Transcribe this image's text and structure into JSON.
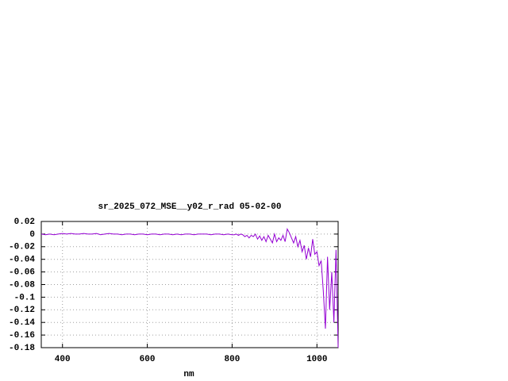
{
  "chart_data": {
    "type": "line",
    "title": "sr_2025_072_MSE__y02_r_rad 05-02-00",
    "x_label": "nm",
    "x": [
      350,
      360,
      370,
      380,
      390,
      400,
      410,
      420,
      430,
      440,
      450,
      460,
      470,
      480,
      490,
      500,
      510,
      520,
      530,
      540,
      550,
      560,
      570,
      580,
      590,
      600,
      610,
      620,
      630,
      640,
      650,
      660,
      670,
      680,
      690,
      700,
      710,
      720,
      730,
      740,
      750,
      760,
      770,
      780,
      790,
      800,
      805,
      810,
      815,
      820,
      825,
      830,
      835,
      840,
      845,
      850,
      855,
      860,
      865,
      870,
      875,
      880,
      885,
      890,
      895,
      900,
      905,
      910,
      915,
      920,
      925,
      930,
      935,
      940,
      945,
      950,
      955,
      960,
      965,
      970,
      975,
      980,
      985,
      990,
      995,
      1000,
      1005,
      1010,
      1015,
      1020,
      1025,
      1030,
      1035,
      1040,
      1045,
      1050
    ],
    "series": [
      {
        "color": "#9400d3",
        "values": [
          0,
          -0.001,
          0,
          -0.001,
          0,
          0.001,
          0,
          0.001,
          0,
          0,
          0.001,
          0,
          0,
          0.001,
          -0.001,
          0,
          0.001,
          0,
          0,
          -0.001,
          0,
          0,
          -0.001,
          0,
          0,
          -0.001,
          0,
          0,
          -0.001,
          0,
          0,
          -0.001,
          0,
          -0.001,
          0,
          0,
          -0.001,
          0,
          0,
          0,
          -0.001,
          0,
          0,
          -0.001,
          0,
          -0.001,
          -0.001,
          0,
          -0.002,
          0,
          -0.001,
          -0.004,
          -0.002,
          -0.006,
          -0.002,
          -0.004,
          0,
          -0.008,
          -0.003,
          -0.01,
          -0.004,
          -0.012,
          -0.002,
          -0.008,
          -0.014,
          0,
          -0.012,
          -0.006,
          -0.01,
          -0.002,
          -0.012,
          0.008,
          0.002,
          -0.006,
          -0.014,
          -0.004,
          -0.02,
          -0.01,
          -0.028,
          -0.018,
          -0.04,
          -0.022,
          -0.036,
          -0.008,
          -0.032,
          -0.028,
          -0.05,
          -0.042,
          -0.09,
          -0.15,
          -0.036,
          -0.12,
          -0.06,
          -0.14,
          -0.025,
          -0.18
        ]
      }
    ],
    "xlim": [
      350,
      1050
    ],
    "xticks": [
      400,
      600,
      800,
      1000
    ],
    "ylim": [
      -0.18,
      0.02
    ],
    "yticks": [
      0.02,
      0,
      -0.02,
      -0.04,
      -0.06,
      -0.08,
      -0.1,
      -0.12,
      -0.14,
      -0.16,
      -0.18
    ],
    "grid": true
  }
}
